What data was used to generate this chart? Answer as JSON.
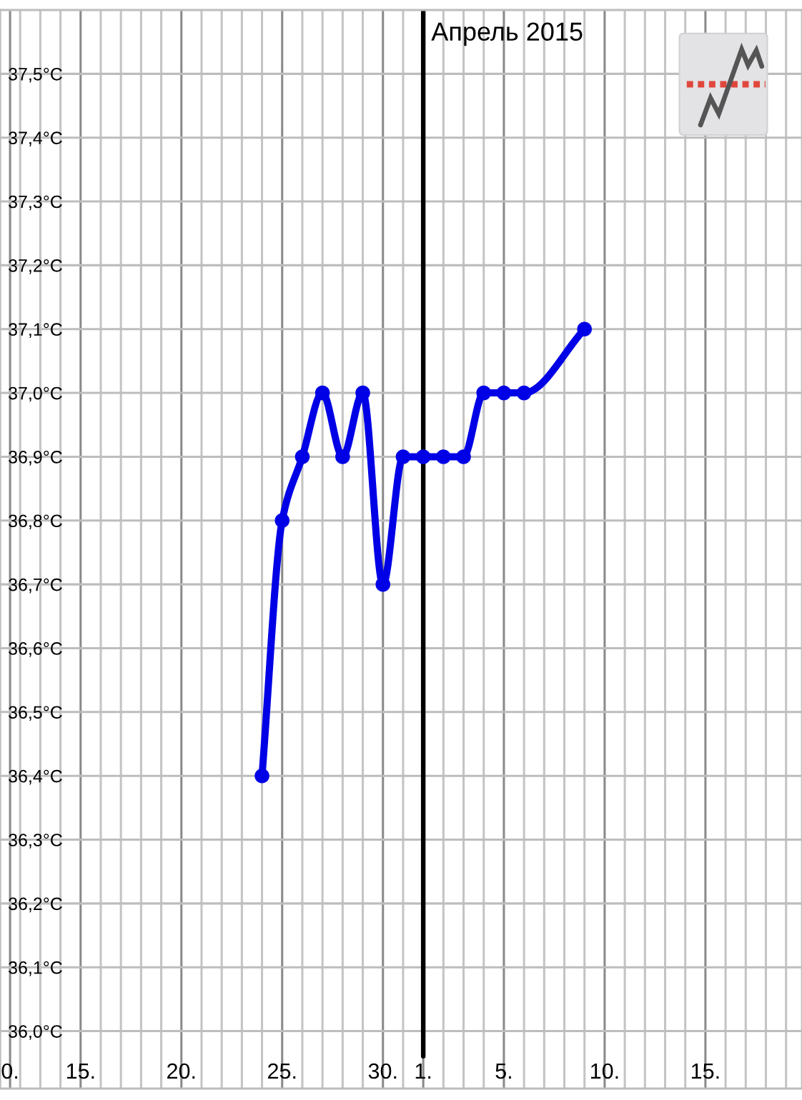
{
  "chart_data": {
    "type": "line",
    "x": [
      "2015-03-24",
      "2015-03-25",
      "2015-03-26",
      "2015-03-27",
      "2015-03-28",
      "2015-03-29",
      "2015-03-30",
      "2015-03-31",
      "2015-04-01",
      "2015-04-02",
      "2015-04-03",
      "2015-04-04",
      "2015-04-05",
      "2015-04-06",
      "2015-04-09"
    ],
    "series": [
      {
        "color": "#0000e6",
        "values": [
          36.4,
          36.8,
          36.9,
          37.0,
          36.9,
          37.0,
          36.7,
          36.9,
          36.9,
          36.9,
          36.9,
          37.0,
          37.0,
          37.0,
          37.1
        ]
      }
    ],
    "marker": "circle",
    "grid": true,
    "xlim": [
      "2015-03-11",
      "2015-04-19T19:00"
    ],
    "xticks": [
      {
        "value": "2015-03-11",
        "label": null
      },
      {
        "value": "2015-03-11T12:00",
        "label": "0."
      },
      {
        "value": "2015-03-12",
        "label": null
      },
      {
        "value": "2015-03-13",
        "label": null
      },
      {
        "value": "2015-03-14",
        "label": null
      },
      {
        "value": "2015-03-15",
        "label": "15."
      },
      {
        "value": "2015-03-16",
        "label": null
      },
      {
        "value": "2015-03-17",
        "label": null
      },
      {
        "value": "2015-03-18",
        "label": null
      },
      {
        "value": "2015-03-19",
        "label": null
      },
      {
        "value": "2015-03-20",
        "label": "20."
      },
      {
        "value": "2015-03-21",
        "label": null
      },
      {
        "value": "2015-03-22",
        "label": null
      },
      {
        "value": "2015-03-23",
        "label": null
      },
      {
        "value": "2015-03-24",
        "label": null
      },
      {
        "value": "2015-03-25",
        "label": "25."
      },
      {
        "value": "2015-03-26",
        "label": null
      },
      {
        "value": "2015-03-27",
        "label": null
      },
      {
        "value": "2015-03-28",
        "label": null
      },
      {
        "value": "2015-03-29",
        "label": null
      },
      {
        "value": "2015-03-30",
        "label": "30."
      },
      {
        "value": "2015-03-31",
        "label": null
      },
      {
        "value": "2015-04-01",
        "label": "1."
      },
      {
        "value": "2015-04-02",
        "label": null
      },
      {
        "value": "2015-04-03",
        "label": null
      },
      {
        "value": "2015-04-04",
        "label": null
      },
      {
        "value": "2015-04-05",
        "label": "5."
      },
      {
        "value": "2015-04-06",
        "label": null
      },
      {
        "value": "2015-04-07",
        "label": null
      },
      {
        "value": "2015-04-08",
        "label": null
      },
      {
        "value": "2015-04-09",
        "label": null
      },
      {
        "value": "2015-04-10",
        "label": "10."
      },
      {
        "value": "2015-04-11",
        "label": null
      },
      {
        "value": "2015-04-12",
        "label": null
      },
      {
        "value": "2015-04-13",
        "label": null
      },
      {
        "value": "2015-04-14",
        "label": null
      },
      {
        "value": "2015-04-15",
        "label": "15."
      },
      {
        "value": "2015-04-16",
        "label": null
      },
      {
        "value": "2015-04-17",
        "label": null
      },
      {
        "value": "2015-04-18",
        "label": null
      },
      {
        "value": "2015-04-19",
        "label": null
      }
    ],
    "ylim": [
      35.91,
      37.6
    ],
    "yticks": [
      {
        "value": 36.0,
        "label": "36,0°C"
      },
      {
        "value": 36.1,
        "label": "36,1°C"
      },
      {
        "value": 36.2,
        "label": "36,2°C"
      },
      {
        "value": 36.3,
        "label": "36,3°C"
      },
      {
        "value": 36.4,
        "label": "36,4°C"
      },
      {
        "value": 36.5,
        "label": "36,5°C"
      },
      {
        "value": 36.6,
        "label": "36,6°C"
      },
      {
        "value": 36.7,
        "label": "36,7°C"
      },
      {
        "value": 36.8,
        "label": "36,8°C"
      },
      {
        "value": 36.9,
        "label": "36,9°C"
      },
      {
        "value": 37.0,
        "label": "37,0°C"
      },
      {
        "value": 37.1,
        "label": "37,1°C"
      },
      {
        "value": 37.2,
        "label": "37,2°C"
      },
      {
        "value": 37.3,
        "label": "37,3°C"
      },
      {
        "value": 37.4,
        "label": "37,4°C"
      },
      {
        "value": 37.5,
        "label": "37,5°C"
      }
    ],
    "ref_lines": [
      {
        "axis": "x",
        "value": "2015-04-01",
        "label": "Апрель 2015",
        "color": "#000000"
      }
    ]
  }
}
